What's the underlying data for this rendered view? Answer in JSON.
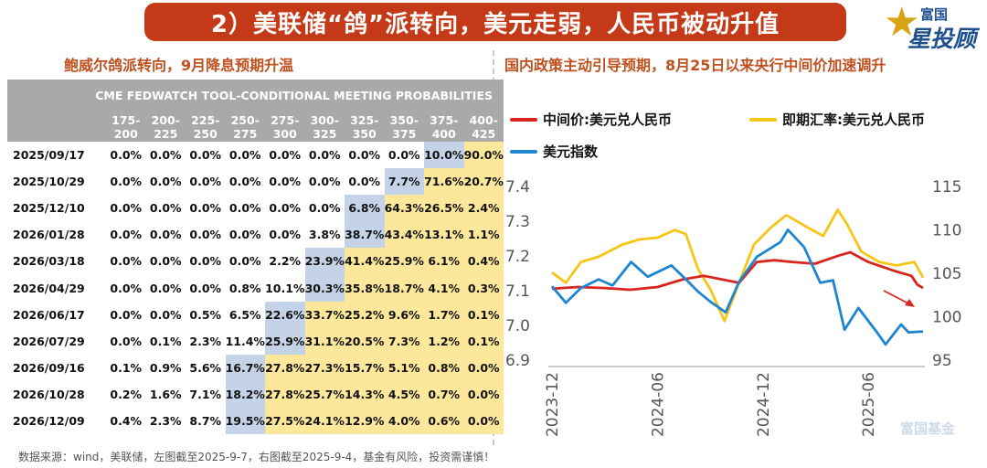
{
  "banner": "2）美联储“鸽”派转向，美元走弱，人民币被动升值",
  "logo": {
    "line1": "富国",
    "line2": "星投顾"
  },
  "left_title": "鲍威尔鸽派转向，9月降息预期升温",
  "right_title": "国内政策主动引导预期，8月25日以来央行中间价加速调升",
  "footer": "数据来源：wind，美联储，左图截至2025-9-7，右图截至2025-9-4，基金有风险，投资需谨慎！",
  "watermark": "富国基金",
  "colors": {
    "midpoint": "#d7261e",
    "spot": "#f5c518",
    "dxy": "#1e86d0",
    "highlight_current": "#c5d3e8",
    "highlight_prob": "#fce79a",
    "header": "#a9a9a9"
  },
  "chart_data": [
    {
      "type": "table",
      "title": "CME FEDWATCH TOOL-CONDITIONAL MEETING PROBABILITIES",
      "columns": [
        "175-200",
        "200-225",
        "225-250",
        "250-275",
        "275-300",
        "300-325",
        "325-350",
        "350-375",
        "375-400",
        "400-425"
      ],
      "rows": [
        {
          "date": "2025/09/17",
          "values": [
            "0.0%",
            "0.0%",
            "0.0%",
            "0.0%",
            "0.0%",
            "0.0%",
            "0.0%",
            "0.0%",
            "10.0%",
            "90.0%"
          ],
          "current": 9,
          "yellow_start": 10
        },
        {
          "date": "2025/10/29",
          "values": [
            "0.0%",
            "0.0%",
            "0.0%",
            "0.0%",
            "0.0%",
            "0.0%",
            "0.0%",
            "7.7%",
            "71.6%",
            "20.7%"
          ],
          "current": 8,
          "yellow_start": 9
        },
        {
          "date": "2025/12/10",
          "values": [
            "0.0%",
            "0.0%",
            "0.0%",
            "0.0%",
            "0.0%",
            "0.0%",
            "6.8%",
            "64.3%",
            "26.5%",
            "2.4%"
          ],
          "current": 7,
          "yellow_start": 8
        },
        {
          "date": "2026/01/28",
          "values": [
            "0.0%",
            "0.0%",
            "0.0%",
            "0.0%",
            "0.0%",
            "3.8%",
            "38.7%",
            "43.4%",
            "13.1%",
            "1.1%"
          ],
          "current": 7,
          "yellow_start": 8
        },
        {
          "date": "2026/03/18",
          "values": [
            "0.0%",
            "0.0%",
            "0.0%",
            "0.0%",
            "2.2%",
            "23.9%",
            "41.4%",
            "25.9%",
            "6.1%",
            "0.4%"
          ],
          "current": 6,
          "yellow_start": 7
        },
        {
          "date": "2026/04/29",
          "values": [
            "0.0%",
            "0.0%",
            "0.0%",
            "0.8%",
            "10.1%",
            "30.3%",
            "35.8%",
            "18.7%",
            "4.1%",
            "0.3%"
          ],
          "current": 6,
          "yellow_start": 7
        },
        {
          "date": "2026/06/17",
          "values": [
            "0.0%",
            "0.0%",
            "0.5%",
            "6.5%",
            "22.6%",
            "33.7%",
            "25.2%",
            "9.6%",
            "1.7%",
            "0.1%"
          ],
          "current": 5,
          "yellow_start": 6
        },
        {
          "date": "2026/07/29",
          "values": [
            "0.0%",
            "0.1%",
            "2.3%",
            "11.4%",
            "25.9%",
            "31.1%",
            "20.5%",
            "7.3%",
            "1.2%",
            "0.1%"
          ],
          "current": 5,
          "yellow_start": 6
        },
        {
          "date": "2026/09/16",
          "values": [
            "0.1%",
            "0.9%",
            "5.6%",
            "16.7%",
            "27.8%",
            "27.3%",
            "15.7%",
            "5.1%",
            "0.8%",
            "0.0%"
          ],
          "current": 4,
          "yellow_start": 5
        },
        {
          "date": "2026/10/28",
          "values": [
            "0.2%",
            "1.6%",
            "7.1%",
            "18.2%",
            "27.8%",
            "25.7%",
            "14.3%",
            "4.5%",
            "0.7%",
            "0.0%"
          ],
          "current": 4,
          "yellow_start": 5
        },
        {
          "date": "2026/12/09",
          "values": [
            "0.4%",
            "2.3%",
            "8.7%",
            "19.5%",
            "27.5%",
            "24.1%",
            "12.9%",
            "4.0%",
            "0.6%",
            "0.0%"
          ],
          "current": 4,
          "yellow_start": 5
        }
      ]
    },
    {
      "type": "line",
      "x_ticks": [
        "2023-12",
        "2024-06",
        "2024-12",
        "2025-06"
      ],
      "y_left": {
        "ticks": [
          "6.9",
          "7.0",
          "7.1",
          "7.2",
          "7.3",
          "7.4"
        ],
        "range": [
          6.9,
          7.4
        ]
      },
      "y_right": {
        "ticks": [
          "95",
          "100",
          "105",
          "110",
          "115"
        ],
        "range": [
          95,
          115
        ]
      },
      "x_range": [
        "2023-12-01",
        "2025-09-04"
      ],
      "series": [
        {
          "name": "中间价:美元兑人民币",
          "axis": "left",
          "color": "#d7261e",
          "points": [
            [
              "2023-12-01",
              7.103
            ],
            [
              "2024-01-15",
              7.108
            ],
            [
              "2024-03-01",
              7.105
            ],
            [
              "2024-04-15",
              7.1
            ],
            [
              "2024-06-01",
              7.108
            ],
            [
              "2024-07-15",
              7.13
            ],
            [
              "2024-08-20",
              7.14
            ],
            [
              "2024-09-20",
              7.13
            ],
            [
              "2024-10-20",
              7.12
            ],
            [
              "2024-11-20",
              7.18
            ],
            [
              "2024-12-20",
              7.185
            ],
            [
              "2025-01-20",
              7.18
            ],
            [
              "2025-03-01",
              7.175
            ],
            [
              "2025-04-10",
              7.198
            ],
            [
              "2025-05-01",
              7.208
            ],
            [
              "2025-06-01",
              7.18
            ],
            [
              "2025-07-15",
              7.155
            ],
            [
              "2025-08-15",
              7.14
            ],
            [
              "2025-08-25",
              7.115
            ],
            [
              "2025-09-04",
              7.105
            ]
          ]
        },
        {
          "name": "即期汇率:美元兑人民币",
          "axis": "left",
          "color": "#f5c518",
          "points": [
            [
              "2023-12-01",
              7.15
            ],
            [
              "2023-12-25",
              7.12
            ],
            [
              "2024-01-20",
              7.18
            ],
            [
              "2024-02-20",
              7.195
            ],
            [
              "2024-04-01",
              7.23
            ],
            [
              "2024-05-01",
              7.245
            ],
            [
              "2024-06-01",
              7.25
            ],
            [
              "2024-07-01",
              7.272
            ],
            [
              "2024-07-20",
              7.26
            ],
            [
              "2024-08-10",
              7.16
            ],
            [
              "2024-09-01",
              7.1
            ],
            [
              "2024-09-25",
              7.01
            ],
            [
              "2024-10-20",
              7.12
            ],
            [
              "2024-11-15",
              7.23
            ],
            [
              "2024-12-15",
              7.28
            ],
            [
              "2025-01-10",
              7.315
            ],
            [
              "2025-02-15",
              7.28
            ],
            [
              "2025-03-15",
              7.255
            ],
            [
              "2025-04-09",
              7.33
            ],
            [
              "2025-04-25",
              7.29
            ],
            [
              "2025-05-20",
              7.21
            ],
            [
              "2025-06-20",
              7.18
            ],
            [
              "2025-07-20",
              7.17
            ],
            [
              "2025-08-20",
              7.18
            ],
            [
              "2025-09-04",
              7.135
            ]
          ]
        },
        {
          "name": "美元指数",
          "axis": "right",
          "color": "#1e86d0",
          "points": [
            [
              "2023-12-01",
              103.4
            ],
            [
              "2023-12-25",
              101.5
            ],
            [
              "2024-01-20",
              103.2
            ],
            [
              "2024-02-20",
              104.2
            ],
            [
              "2024-03-15",
              103.5
            ],
            [
              "2024-04-16",
              106.2
            ],
            [
              "2024-05-15",
              104.5
            ],
            [
              "2024-06-25",
              105.8
            ],
            [
              "2024-07-20",
              104.2
            ],
            [
              "2024-08-10",
              102.8
            ],
            [
              "2024-09-01",
              101.6
            ],
            [
              "2024-09-27",
              100.4
            ],
            [
              "2024-10-20",
              103.9
            ],
            [
              "2024-11-20",
              106.8
            ],
            [
              "2024-12-31",
              108.5
            ],
            [
              "2025-01-13",
              109.9
            ],
            [
              "2025-02-10",
              107.9
            ],
            [
              "2025-03-10",
              103.8
            ],
            [
              "2025-04-01",
              104.1
            ],
            [
              "2025-04-21",
              98.4
            ],
            [
              "2025-05-15",
              100.9
            ],
            [
              "2025-06-15",
              98.2
            ],
            [
              "2025-07-01",
              96.7
            ],
            [
              "2025-07-28",
              99.0
            ],
            [
              "2025-08-10",
              98.1
            ],
            [
              "2025-09-04",
              98.2
            ]
          ]
        }
      ],
      "annotation": "arrow-down"
    }
  ]
}
